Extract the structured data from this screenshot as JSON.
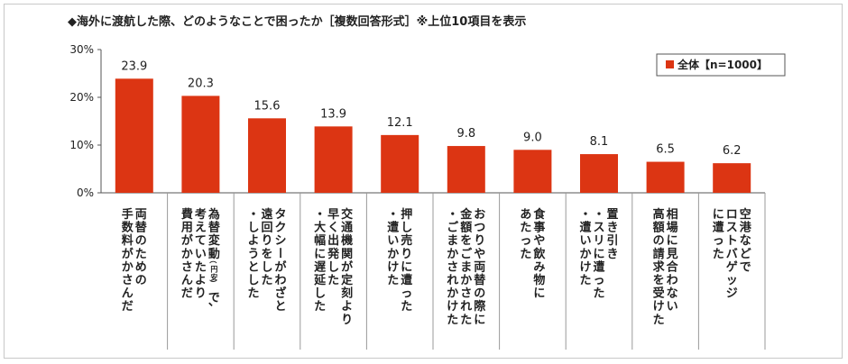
{
  "chart_data": {
    "type": "bar",
    "title": "◆海外に渡航した際、どのようなことで困ったか［複数回答形式］※上位10項目を表示",
    "ylim": [
      0,
      30
    ],
    "yticks": [
      "0%",
      "10%",
      "20%",
      "30%"
    ],
    "ytick_values": [
      0,
      10,
      20,
      30
    ],
    "grid": false,
    "legend_position": "top-right",
    "series": [
      {
        "name": "全体【n=1000】",
        "color": "#dc3513",
        "values": [
          23.9,
          20.3,
          15.6,
          13.9,
          12.1,
          9.8,
          9.0,
          8.1,
          6.5,
          6.2
        ],
        "labels": [
          "23.9",
          "20.3",
          "15.6",
          "13.9",
          "12.1",
          "9.8",
          "9.0",
          "8.1",
          "6.5",
          "6.2"
        ]
      }
    ],
    "categories": [
      [
        "両替のための",
        "手数料がかさんだ"
      ],
      [
        "為替変動（円安）で、",
        "考えていたより",
        "費用がかさんだ"
      ],
      [
        "タクシーがわざと",
        "遠回りをした",
        "・しようとした"
      ],
      [
        "交通機関が定刻より",
        "早く出発した",
        "・大幅に遅延した"
      ],
      [
        "押し売りに遭った",
        "・遭いかけた"
      ],
      [
        "おつりや両替の際に",
        "金額をごまかされた",
        "・ごまかされかけた"
      ],
      [
        "食事や飲み物に",
        "あたった"
      ],
      [
        "置き引き",
        "・スリに遭った",
        "・遭いかけた"
      ],
      [
        "相場に見合わない",
        "高額の請求を受けた"
      ],
      [
        "空港などで",
        "ロストバゲッジ",
        "に遭った"
      ]
    ]
  }
}
